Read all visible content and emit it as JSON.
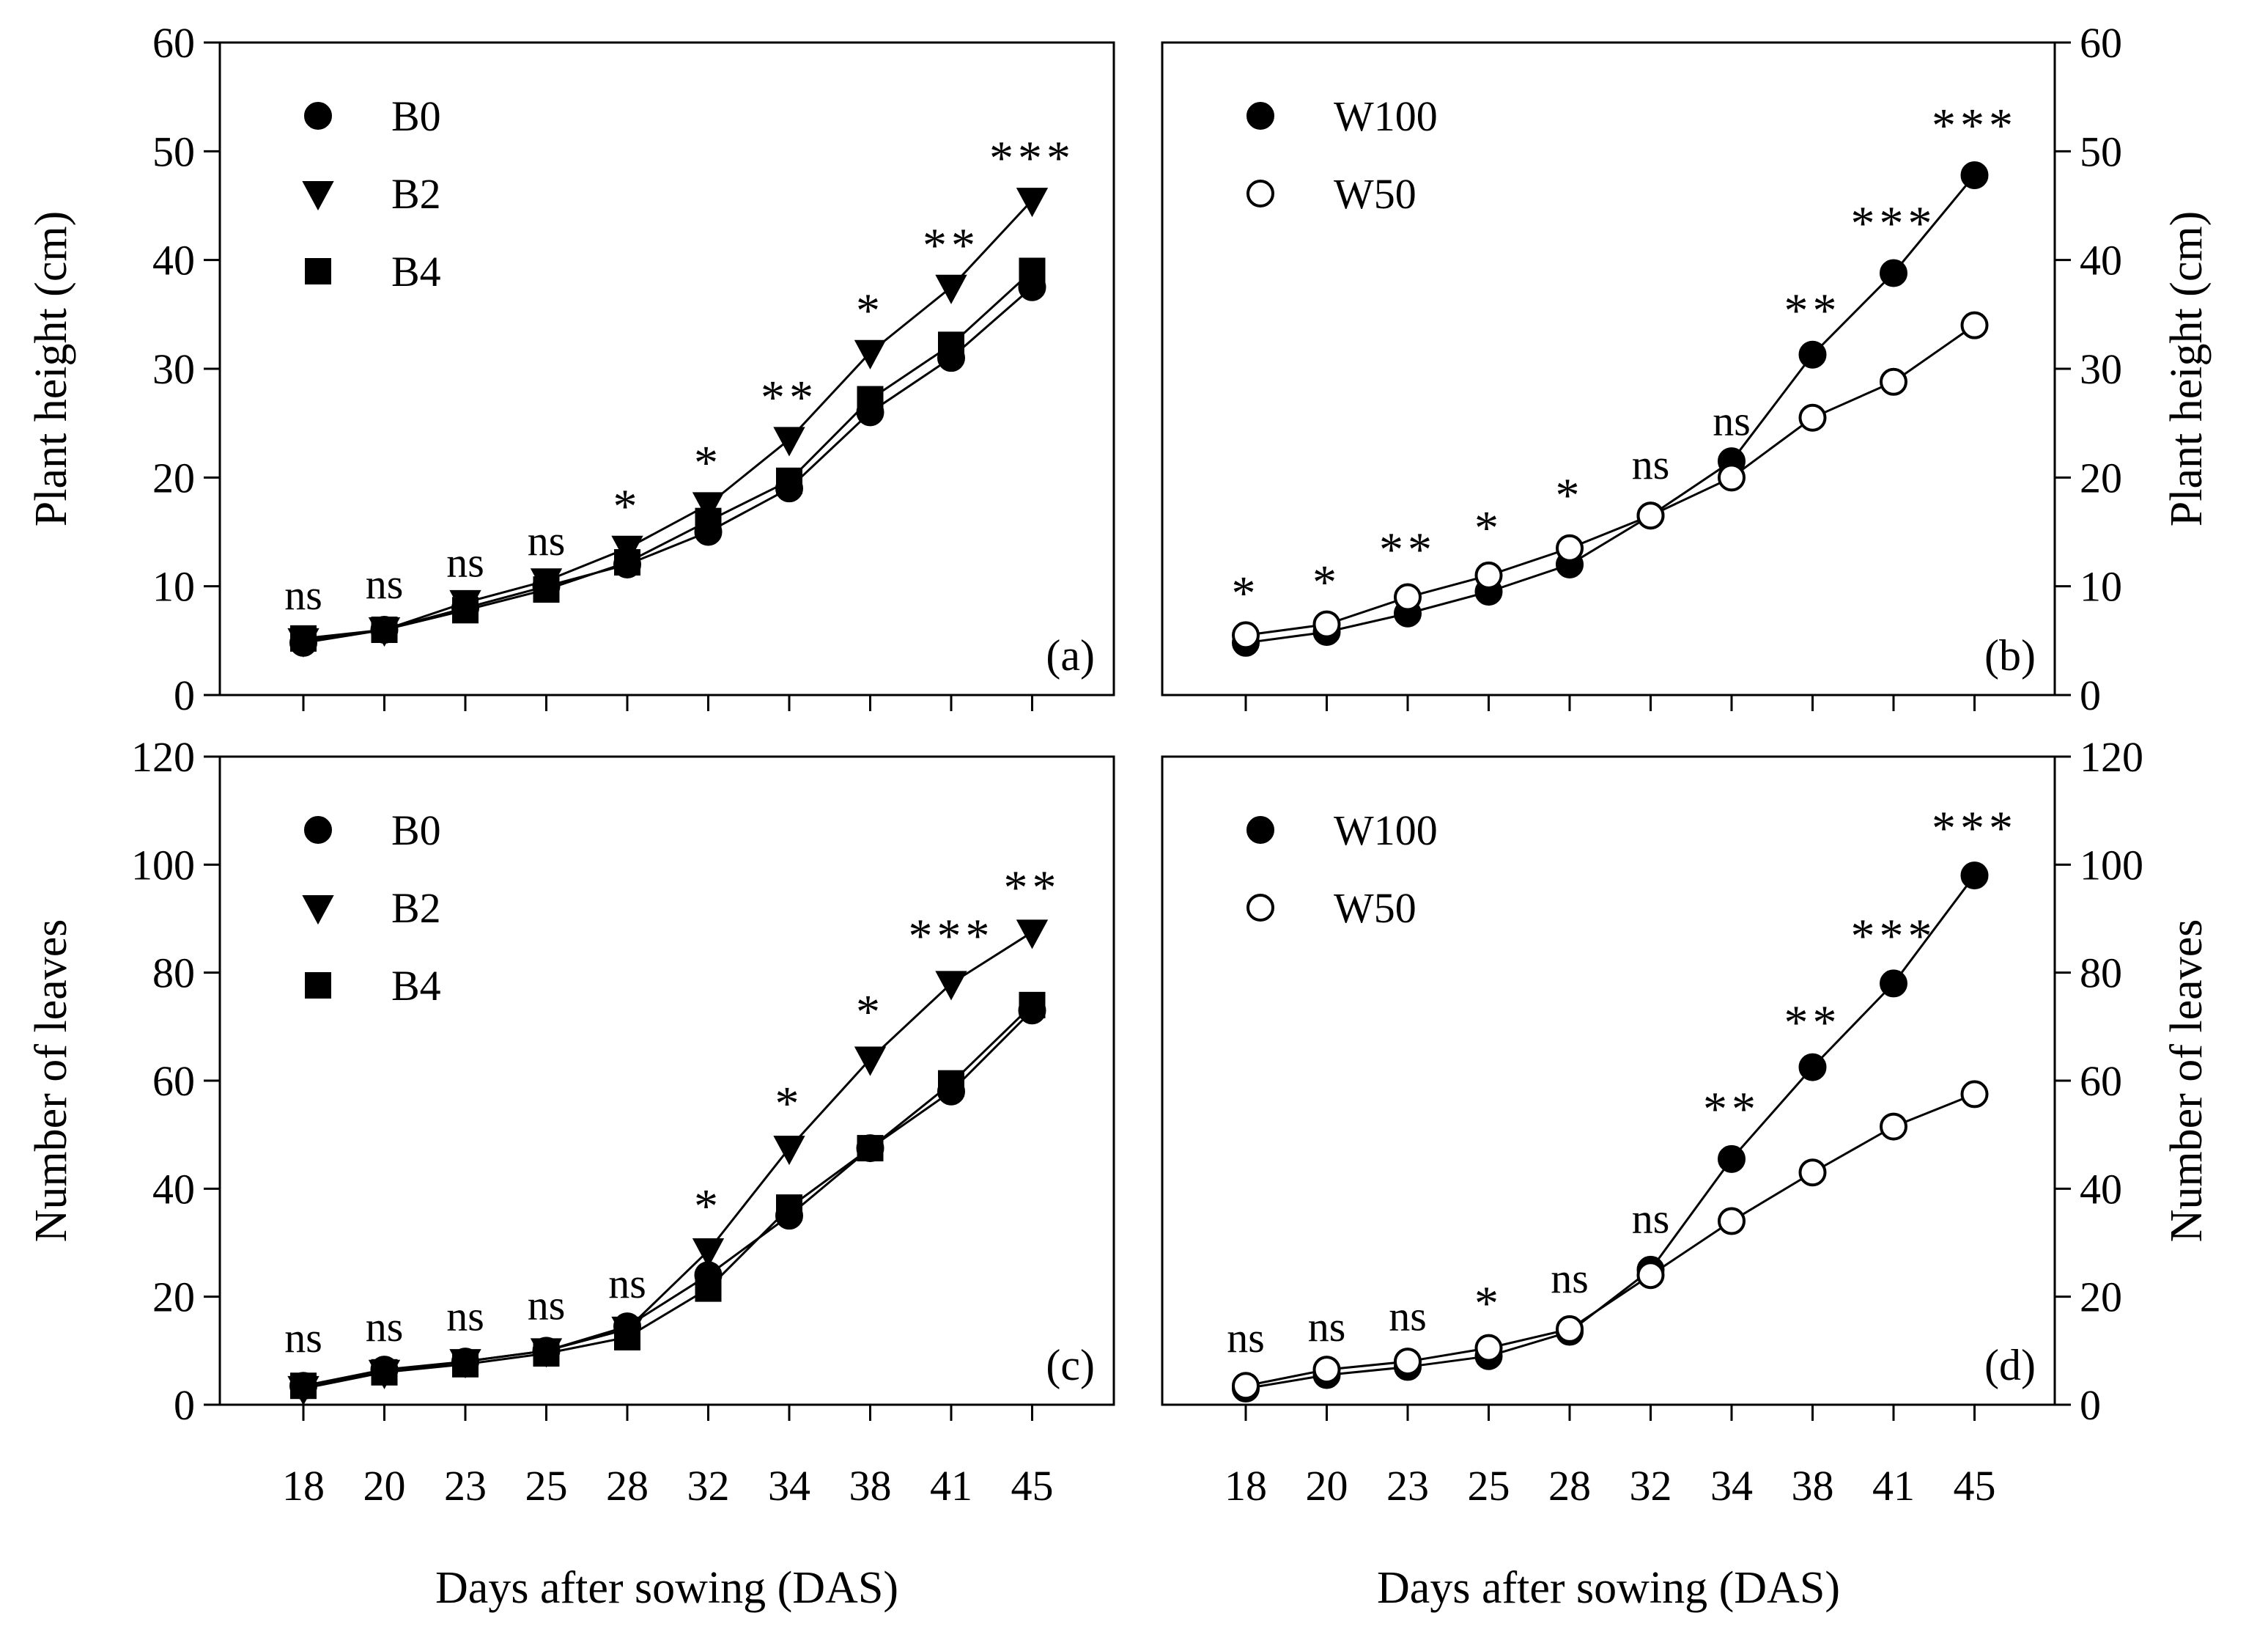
{
  "x_axis_label": "Days after sowing (DAS)",
  "chart_data": [
    {
      "type": "line",
      "panel": "(a)",
      "ylabel": "Plant height (cm)",
      "y_axis_side": "left",
      "categories": [
        "18",
        "20",
        "23",
        "25",
        "28",
        "32",
        "34",
        "38",
        "41",
        "45"
      ],
      "ylim": [
        0,
        60
      ],
      "yticks": [
        0,
        10,
        20,
        30,
        40,
        50,
        60
      ],
      "show_x_ticklabels": false,
      "series": [
        {
          "name": "B0",
          "marker": "circle",
          "fill": "#000000",
          "values": [
            4.8,
            6.0,
            8.0,
            10.0,
            12.0,
            15.0,
            19.0,
            26.0,
            31.0,
            37.5
          ]
        },
        {
          "name": "B2",
          "marker": "triangle-down",
          "fill": "#000000",
          "values": [
            5.0,
            6.0,
            8.5,
            10.5,
            13.5,
            17.5,
            23.5,
            31.5,
            37.5,
            45.5
          ]
        },
        {
          "name": "B4",
          "marker": "square",
          "fill": "#000000",
          "values": [
            5.2,
            6.0,
            7.8,
            9.7,
            12.2,
            16.0,
            19.7,
            27.2,
            32.2,
            39.0
          ]
        }
      ],
      "significance": [
        "ns",
        "ns",
        "ns",
        "ns",
        "*",
        "*",
        "**",
        "*",
        "**",
        "***"
      ],
      "sig_y": [
        6,
        7,
        9,
        11,
        14,
        18,
        24,
        32,
        38,
        46
      ]
    },
    {
      "type": "line",
      "panel": "(b)",
      "ylabel": "Plant height (cm)",
      "y_axis_side": "right",
      "categories": [
        "18",
        "20",
        "23",
        "25",
        "28",
        "32",
        "34",
        "38",
        "41",
        "45"
      ],
      "ylim": [
        0,
        60
      ],
      "yticks": [
        0,
        10,
        20,
        30,
        40,
        50,
        60
      ],
      "show_x_ticklabels": false,
      "series": [
        {
          "name": "W100",
          "marker": "circle",
          "fill": "#000000",
          "values": [
            4.8,
            5.8,
            7.5,
            9.5,
            12.0,
            16.5,
            21.5,
            31.3,
            38.8,
            47.8
          ]
        },
        {
          "name": "W50",
          "marker": "circle",
          "fill": "#ffffff",
          "values": [
            5.5,
            6.5,
            9.0,
            11.0,
            13.5,
            16.5,
            20.0,
            25.5,
            28.8,
            34.0
          ]
        }
      ],
      "significance": [
        "*",
        "*",
        "**",
        "*",
        "*",
        "ns",
        "ns",
        "**",
        "***",
        "***"
      ],
      "sig_y": [
        6,
        7,
        10,
        12,
        15,
        18,
        22,
        32,
        40,
        49
      ]
    },
    {
      "type": "line",
      "panel": "(c)",
      "ylabel": "Number of leaves",
      "y_axis_side": "left",
      "categories": [
        "18",
        "20",
        "23",
        "25",
        "28",
        "32",
        "34",
        "38",
        "41",
        "45"
      ],
      "ylim": [
        0,
        120
      ],
      "yticks": [
        0,
        20,
        40,
        60,
        80,
        100,
        120
      ],
      "show_x_ticklabels": true,
      "series": [
        {
          "name": "B0",
          "marker": "circle",
          "fill": "#000000",
          "values": [
            3.5,
            6.5,
            8.0,
            10.0,
            14.5,
            24.0,
            35.0,
            47.5,
            58.0,
            73.0
          ]
        },
        {
          "name": "B2",
          "marker": "triangle-down",
          "fill": "#000000",
          "values": [
            3.0,
            6.0,
            8.0,
            10.0,
            14.0,
            28.5,
            47.5,
            64.0,
            78.0,
            87.5
          ]
        },
        {
          "name": "B4",
          "marker": "square",
          "fill": "#000000",
          "values": [
            3.5,
            6.0,
            7.5,
            9.5,
            12.5,
            21.5,
            36.5,
            47.5,
            59.5,
            74.0
          ]
        }
      ],
      "significance": [
        "ns",
        "ns",
        "ns",
        "ns",
        "ns",
        "*",
        "*",
        "*",
        "***",
        "**"
      ],
      "sig_y": [
        6,
        8,
        10,
        12,
        16,
        30,
        49,
        66,
        80,
        89
      ]
    },
    {
      "type": "line",
      "panel": "(d)",
      "ylabel": "Number of leaves",
      "y_axis_side": "right",
      "categories": [
        "18",
        "20",
        "23",
        "25",
        "28",
        "32",
        "34",
        "38",
        "41",
        "45"
      ],
      "ylim": [
        0,
        120
      ],
      "yticks": [
        0,
        20,
        40,
        60,
        80,
        100,
        120
      ],
      "show_x_ticklabels": true,
      "series": [
        {
          "name": "W100",
          "marker": "circle",
          "fill": "#000000",
          "values": [
            3.0,
            5.5,
            7.0,
            9.0,
            13.5,
            25.0,
            45.5,
            62.5,
            78.0,
            98.0
          ]
        },
        {
          "name": "W50",
          "marker": "circle",
          "fill": "#ffffff",
          "values": [
            3.5,
            6.5,
            8.0,
            10.5,
            14.0,
            24.0,
            34.0,
            43.0,
            51.5,
            57.5
          ]
        }
      ],
      "significance": [
        "ns",
        "ns",
        "ns",
        "*",
        "ns",
        "ns",
        "**",
        "**",
        "***",
        "***"
      ],
      "sig_y": [
        6,
        8,
        10,
        12,
        17,
        28,
        48,
        64,
        80,
        100
      ]
    }
  ]
}
